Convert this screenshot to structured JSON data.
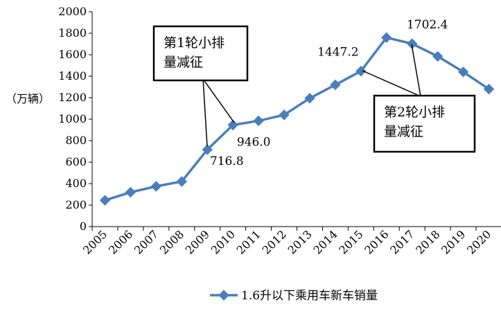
{
  "chart_data": {
    "type": "line",
    "ylabel": "（万辆）",
    "ylim": [
      0,
      2000
    ],
    "yticks": [
      0,
      200,
      400,
      600,
      800,
      1000,
      1200,
      1400,
      1600,
      1800,
      2000
    ],
    "categories": [
      "2005",
      "2006",
      "2007",
      "2008",
      "2009",
      "2010",
      "2011",
      "2012",
      "2013",
      "2014",
      "2015",
      "2016",
      "2017",
      "2018",
      "2019",
      "2020"
    ],
    "series": [
      {
        "name": "1.6升以下乘用车新车销量",
        "color": "#4A7EBB",
        "values": [
          245,
          320,
          375,
          420,
          716.8,
          946.0,
          985,
          1040,
          1195,
          1320,
          1447.2,
          1760,
          1702.4,
          1585,
          1440,
          1280
        ]
      }
    ],
    "data_labels": [
      {
        "index": 4,
        "text": "716.8"
      },
      {
        "index": 5,
        "text": "946.0"
      },
      {
        "index": 10,
        "text": "1447.2"
      },
      {
        "index": 12,
        "text": "1702.4"
      }
    ],
    "annotations": [
      {
        "lines": [
          "第1轮小排",
          "量减征"
        ],
        "points": [
          4,
          5
        ]
      },
      {
        "lines": [
          "第2轮小排",
          "量减征"
        ],
        "points": [
          10,
          12
        ]
      }
    ],
    "legend": "bottom",
    "grid": false
  }
}
